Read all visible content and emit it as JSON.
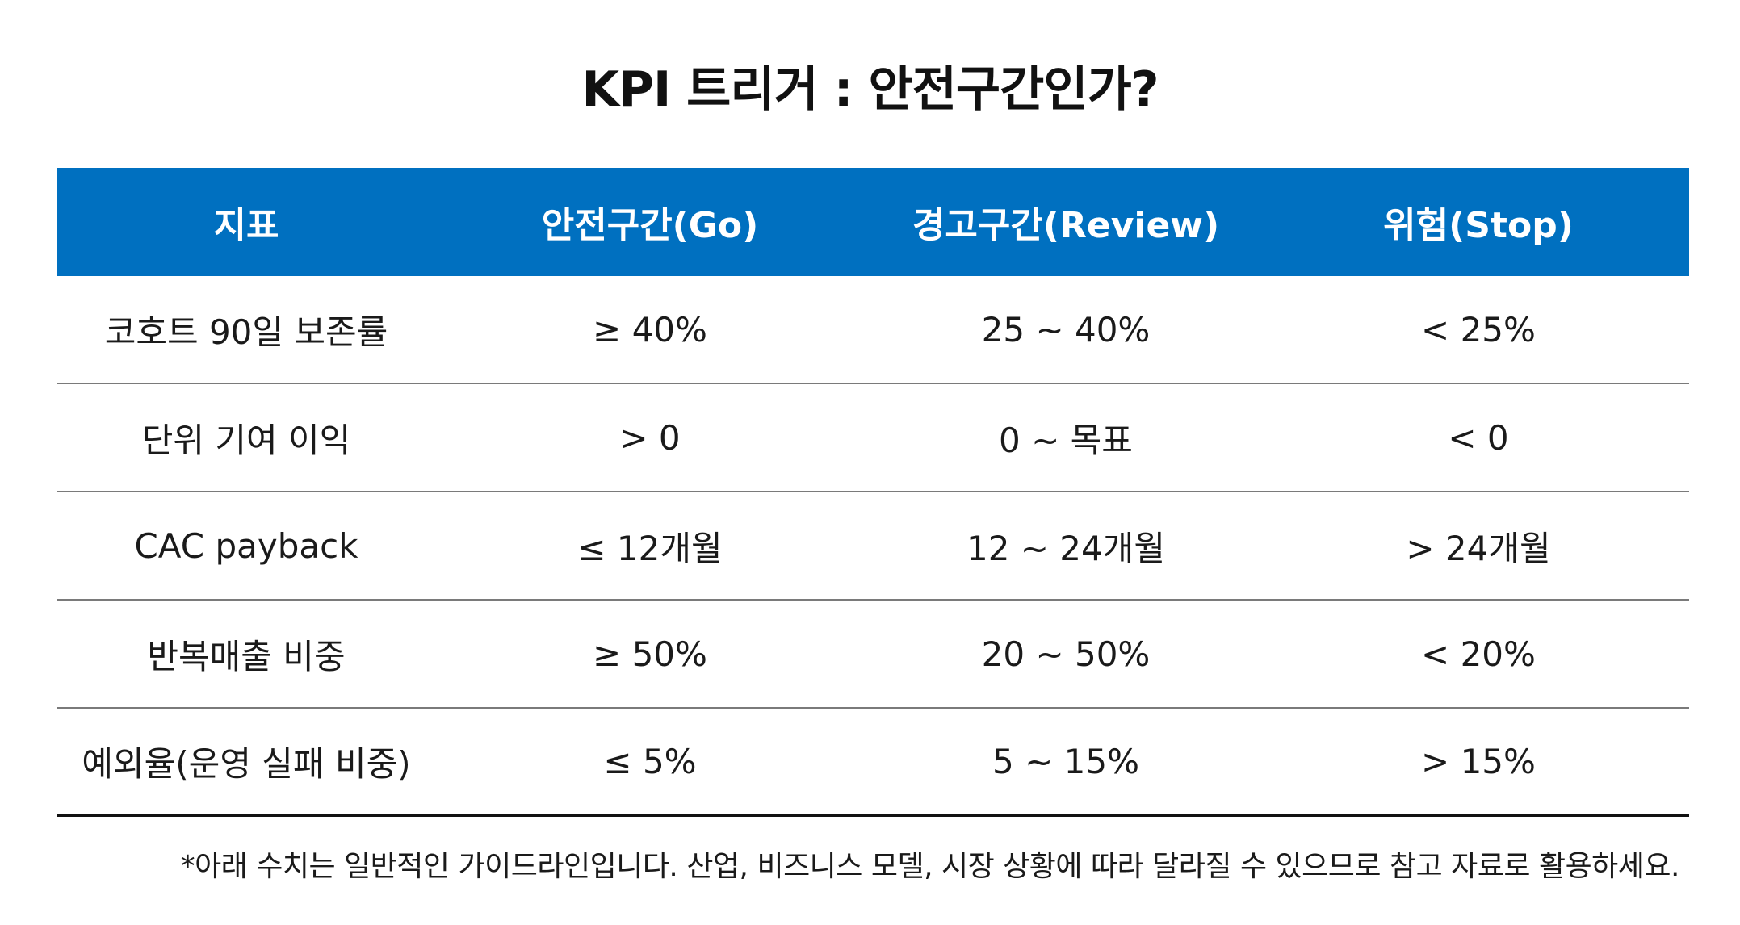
{
  "title": "KPI 트리거 : 안전구간인가?",
  "header": {
    "metric": "지표",
    "go": "안전구간(Go)",
    "review": "경고구간(Review)",
    "stop": "위험(Stop)"
  },
  "rows": [
    {
      "metric": "코호트 90일 보존률",
      "go": "≥ 40%",
      "review": "25 ~ 40%",
      "stop": "< 25%"
    },
    {
      "metric": "단위 기여 이익",
      "go": "> 0",
      "review": "0 ~ 목표",
      "stop": "< 0"
    },
    {
      "metric": "CAC payback",
      "go": "≤ 12개월",
      "review": "12 ~ 24개월",
      "stop": "> 24개월"
    },
    {
      "metric": "반복매출 비중",
      "go": "≥ 50%",
      "review": "20 ~ 50%",
      "stop": "< 20%"
    },
    {
      "metric": "예외율(운영 실패 비중)",
      "go": "≤ 5%",
      "review": "5 ~ 15%",
      "stop": "> 15%"
    }
  ],
  "note": "*아래 수치는 일반적인 가이드라인입니다. 산업, 비즈니스 모델, 시장 상황에 따라 달라질 수 있으므로 참고 자료로 활용하세요.",
  "colors": {
    "header_bg": "#0070c0",
    "header_text": "#ffffff"
  }
}
